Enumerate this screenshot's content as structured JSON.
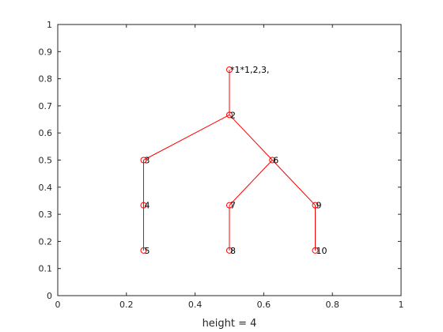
{
  "chart_data": {
    "type": "scatter",
    "title": "",
    "xlabel": "height = 4",
    "ylabel": "",
    "xlim": [
      0,
      1
    ],
    "ylim": [
      0,
      1
    ],
    "xticks": [
      "0",
      "0.2",
      "0.4",
      "0.6",
      "0.8",
      "1"
    ],
    "yticks": [
      "0",
      "0.1",
      "0.2",
      "0.3",
      "0.4",
      "0.5",
      "0.6",
      "0.7",
      "0.8",
      "0.9",
      "1"
    ],
    "grid": false,
    "colors": {
      "series": "#ff0000",
      "axes": "#262626"
    },
    "nodes": [
      {
        "id": 1,
        "label": "*1*1,2,3,",
        "x": 0.5,
        "y": 0.8333
      },
      {
        "id": 2,
        "label": "2",
        "x": 0.5,
        "y": 0.6667
      },
      {
        "id": 3,
        "label": "3",
        "x": 0.25,
        "y": 0.5
      },
      {
        "id": 4,
        "label": "4",
        "x": 0.25,
        "y": 0.3333
      },
      {
        "id": 5,
        "label": "5",
        "x": 0.25,
        "y": 0.1667
      },
      {
        "id": 6,
        "label": "6",
        "x": 0.625,
        "y": 0.5
      },
      {
        "id": 7,
        "label": "7",
        "x": 0.5,
        "y": 0.3333
      },
      {
        "id": 8,
        "label": "8",
        "x": 0.5,
        "y": 0.1667
      },
      {
        "id": 9,
        "label": "9",
        "x": 0.75,
        "y": 0.3333
      },
      {
        "id": 10,
        "label": "10",
        "x": 0.75,
        "y": 0.1667
      }
    ],
    "edges": [
      [
        1,
        2
      ],
      [
        2,
        3
      ],
      [
        3,
        4
      ],
      [
        4,
        5
      ],
      [
        2,
        6
      ],
      [
        6,
        7
      ],
      [
        7,
        8
      ],
      [
        6,
        9
      ],
      [
        9,
        10
      ]
    ]
  }
}
